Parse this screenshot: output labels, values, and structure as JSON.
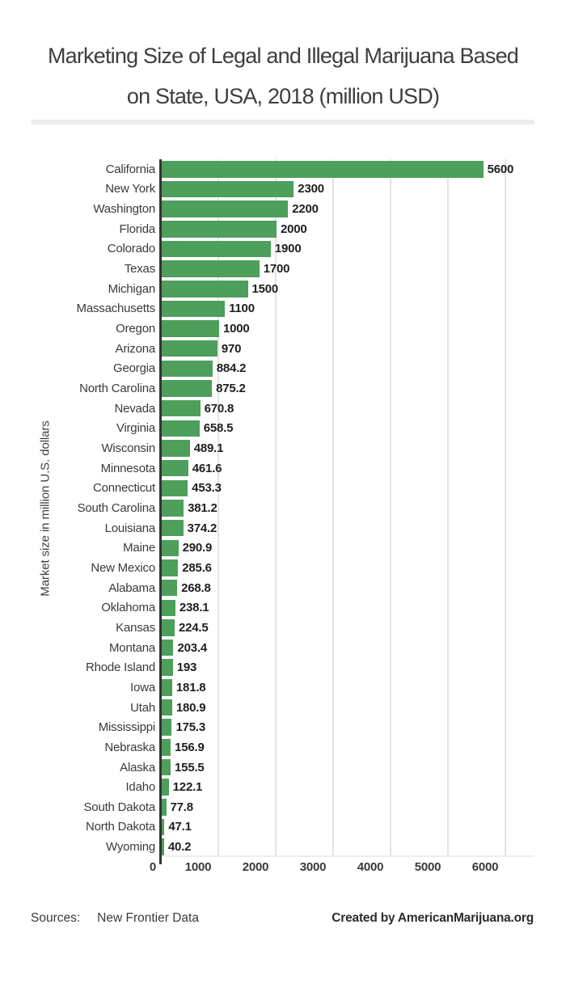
{
  "title": {
    "line1": "Marketing Size of Legal and Illegal Marijuana Based",
    "line2": "on State, USA, 2018 (million USD)"
  },
  "chart_data": {
    "type": "bar",
    "orientation": "horizontal",
    "title": "Marketing Size of Legal and Illegal Marijuana Based on State, USA, 2018 (million USD)",
    "xlabel": "",
    "ylabel": "Market size in million U.S. dollars",
    "xlim": [
      0,
      6500
    ],
    "x_ticks": [
      0,
      1000,
      2000,
      3000,
      4000,
      5000,
      6000
    ],
    "x_tick_labels": [
      "0",
      "1000",
      "2000",
      "3000",
      "4000",
      "5000",
      "6000"
    ],
    "grid": true,
    "bar_color": "#4d9f5b",
    "axis_color": "#343434",
    "gridline_color": "#e3e3e3",
    "categories": [
      "California",
      "New York",
      "Washington",
      "Florida",
      "Colorado",
      "Texas",
      "Michigan",
      "Massachusetts",
      "Oregon",
      "Arizona",
      "Georgia",
      "North Carolina",
      "Nevada",
      "Virginia",
      "Wisconsin",
      "Minnesota",
      "Connecticut",
      "South Carolina",
      "Louisiana",
      "Maine",
      "New Mexico",
      "Alabama",
      "Oklahoma",
      "Kansas",
      "Montana",
      "Rhode Island",
      "Iowa",
      "Utah",
      "Mississippi",
      "Nebraska",
      "Alaska",
      "Idaho",
      "South Dakota",
      "North Dakota",
      "Wyoming"
    ],
    "values": [
      5600,
      2300,
      2200,
      2000,
      1900,
      1700,
      1500,
      1100,
      1000,
      970,
      884.2,
      875.2,
      670.8,
      658.5,
      489.1,
      461.6,
      453.3,
      381.2,
      374.2,
      290.9,
      285.6,
      268.8,
      238.1,
      224.5,
      203.4,
      193,
      181.8,
      180.9,
      175.3,
      156.9,
      155.5,
      122.1,
      77.8,
      47.1,
      40.2
    ],
    "value_labels": [
      "5600",
      "2300",
      "2200",
      "2000",
      "1900",
      "1700",
      "1500",
      "1100",
      "1000",
      "970",
      "884.2",
      "875.2",
      "670.8",
      "658.5",
      "489.1",
      "461.6",
      "453.3",
      "381.2",
      "374.2",
      "290.9",
      "285.6",
      "268.8",
      "238.1",
      "224.5",
      "203.4",
      "193",
      "181.8",
      "180.9",
      "175.3",
      "156.9",
      "155.5",
      "122.1",
      "77.8",
      "47.1",
      "40.2"
    ]
  },
  "footer": {
    "sources_label": "Sources:",
    "sources_value": "New Frontier Data",
    "credit": "Created by AmericanMarijuana.org"
  }
}
